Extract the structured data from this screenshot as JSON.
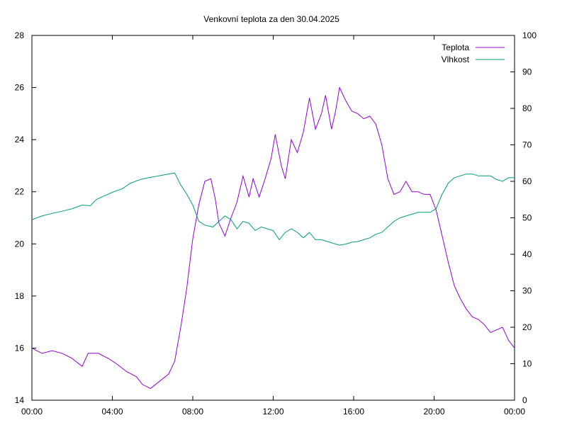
{
  "chart_data": {
    "type": "line",
    "title": "Venkovní teplota za den 30.04.2025",
    "x_ticks": [
      "00:00",
      "04:00",
      "08:00",
      "12:00",
      "16:00",
      "20:00",
      "00:00"
    ],
    "x_range_hours": [
      0,
      24
    ],
    "y_left": {
      "range": [
        14,
        28
      ],
      "ticks": [
        14,
        16,
        18,
        20,
        22,
        24,
        26,
        28
      ]
    },
    "y_right": {
      "range": [
        0,
        100
      ],
      "ticks": [
        0,
        10,
        20,
        30,
        40,
        50,
        60,
        70,
        80,
        90,
        100
      ]
    },
    "grid": false,
    "legend_position": "top-right",
    "series": [
      {
        "name": "Teplota",
        "axis": "left",
        "color": "#9400d3",
        "points": [
          [
            0.0,
            16.0
          ],
          [
            0.5,
            15.8
          ],
          [
            1.0,
            15.9
          ],
          [
            1.5,
            15.8
          ],
          [
            2.0,
            15.6
          ],
          [
            2.5,
            15.3
          ],
          [
            2.8,
            15.8
          ],
          [
            3.3,
            15.8
          ],
          [
            3.8,
            15.6
          ],
          [
            4.2,
            15.4
          ],
          [
            4.7,
            15.1
          ],
          [
            5.2,
            14.9
          ],
          [
            5.5,
            14.6
          ],
          [
            5.9,
            14.45
          ],
          [
            6.3,
            14.7
          ],
          [
            6.8,
            15.0
          ],
          [
            7.1,
            15.5
          ],
          [
            7.4,
            16.8
          ],
          [
            7.7,
            18.3
          ],
          [
            8.0,
            20.2
          ],
          [
            8.3,
            21.5
          ],
          [
            8.6,
            22.4
          ],
          [
            8.9,
            22.5
          ],
          [
            9.1,
            21.8
          ],
          [
            9.3,
            20.8
          ],
          [
            9.6,
            20.3
          ],
          [
            9.9,
            21.0
          ],
          [
            10.2,
            21.6
          ],
          [
            10.5,
            22.6
          ],
          [
            10.8,
            21.8
          ],
          [
            11.0,
            22.5
          ],
          [
            11.3,
            21.8
          ],
          [
            11.6,
            22.5
          ],
          [
            11.9,
            23.3
          ],
          [
            12.1,
            24.2
          ],
          [
            12.4,
            23.0
          ],
          [
            12.6,
            22.5
          ],
          [
            12.9,
            24.0
          ],
          [
            13.2,
            23.5
          ],
          [
            13.5,
            24.3
          ],
          [
            13.8,
            25.6
          ],
          [
            14.1,
            24.4
          ],
          [
            14.4,
            25.0
          ],
          [
            14.6,
            25.7
          ],
          [
            14.9,
            24.4
          ],
          [
            15.1,
            25.1
          ],
          [
            15.3,
            26.0
          ],
          [
            15.6,
            25.5
          ],
          [
            15.9,
            25.1
          ],
          [
            16.2,
            25.0
          ],
          [
            16.5,
            24.8
          ],
          [
            16.8,
            24.9
          ],
          [
            17.1,
            24.6
          ],
          [
            17.4,
            23.8
          ],
          [
            17.7,
            22.5
          ],
          [
            18.0,
            21.9
          ],
          [
            18.3,
            22.0
          ],
          [
            18.6,
            22.4
          ],
          [
            18.9,
            22.0
          ],
          [
            19.2,
            22.0
          ],
          [
            19.5,
            21.9
          ],
          [
            19.8,
            21.9
          ],
          [
            20.1,
            21.3
          ],
          [
            20.4,
            20.3
          ],
          [
            20.7,
            19.3
          ],
          [
            21.0,
            18.4
          ],
          [
            21.3,
            17.9
          ],
          [
            21.6,
            17.5
          ],
          [
            21.9,
            17.2
          ],
          [
            22.2,
            17.1
          ],
          [
            22.5,
            16.9
          ],
          [
            22.8,
            16.6
          ],
          [
            23.1,
            16.7
          ],
          [
            23.4,
            16.8
          ],
          [
            23.7,
            16.3
          ],
          [
            24.0,
            16.0
          ]
        ]
      },
      {
        "name": "Vlhkost",
        "axis": "right",
        "color": "#009e73",
        "points": [
          [
            0.0,
            49.5
          ],
          [
            0.5,
            50.5
          ],
          [
            1.0,
            51.2
          ],
          [
            1.5,
            51.8
          ],
          [
            2.0,
            52.5
          ],
          [
            2.5,
            53.5
          ],
          [
            2.9,
            53.3
          ],
          [
            3.2,
            55.0
          ],
          [
            3.6,
            56.0
          ],
          [
            4.0,
            57.0
          ],
          [
            4.5,
            58.0
          ],
          [
            4.9,
            59.5
          ],
          [
            5.4,
            60.5
          ],
          [
            5.8,
            61.0
          ],
          [
            6.3,
            61.5
          ],
          [
            6.8,
            62.0
          ],
          [
            7.1,
            62.3
          ],
          [
            7.4,
            59.0
          ],
          [
            7.7,
            56.5
          ],
          [
            8.0,
            53.5
          ],
          [
            8.3,
            49.0
          ],
          [
            8.6,
            48.0
          ],
          [
            9.0,
            47.5
          ],
          [
            9.3,
            49.0
          ],
          [
            9.6,
            50.5
          ],
          [
            9.9,
            49.5
          ],
          [
            10.2,
            47.0
          ],
          [
            10.5,
            49.0
          ],
          [
            10.8,
            48.5
          ],
          [
            11.1,
            46.5
          ],
          [
            11.4,
            47.5
          ],
          [
            11.7,
            47.0
          ],
          [
            12.0,
            46.5
          ],
          [
            12.3,
            44.0
          ],
          [
            12.6,
            46.0
          ],
          [
            12.9,
            47.0
          ],
          [
            13.2,
            46.0
          ],
          [
            13.5,
            44.5
          ],
          [
            13.8,
            46.0
          ],
          [
            14.1,
            44.0
          ],
          [
            14.4,
            44.0
          ],
          [
            14.7,
            43.5
          ],
          [
            15.0,
            43.0
          ],
          [
            15.3,
            42.5
          ],
          [
            15.6,
            42.8
          ],
          [
            15.9,
            43.3
          ],
          [
            16.2,
            43.5
          ],
          [
            16.5,
            44.0
          ],
          [
            16.8,
            44.5
          ],
          [
            17.1,
            45.5
          ],
          [
            17.4,
            46.0
          ],
          [
            17.7,
            47.5
          ],
          [
            18.0,
            49.0
          ],
          [
            18.3,
            50.0
          ],
          [
            18.6,
            50.5
          ],
          [
            18.9,
            51.0
          ],
          [
            19.2,
            51.5
          ],
          [
            19.5,
            51.5
          ],
          [
            19.8,
            51.5
          ],
          [
            20.1,
            52.5
          ],
          [
            20.4,
            56.5
          ],
          [
            20.7,
            59.5
          ],
          [
            21.0,
            61.0
          ],
          [
            21.3,
            61.5
          ],
          [
            21.6,
            62.0
          ],
          [
            21.9,
            62.0
          ],
          [
            22.2,
            61.5
          ],
          [
            22.5,
            61.5
          ],
          [
            22.8,
            61.5
          ],
          [
            23.1,
            60.5
          ],
          [
            23.4,
            60.0
          ],
          [
            23.7,
            61.0
          ],
          [
            24.0,
            61.0
          ]
        ]
      }
    ]
  }
}
